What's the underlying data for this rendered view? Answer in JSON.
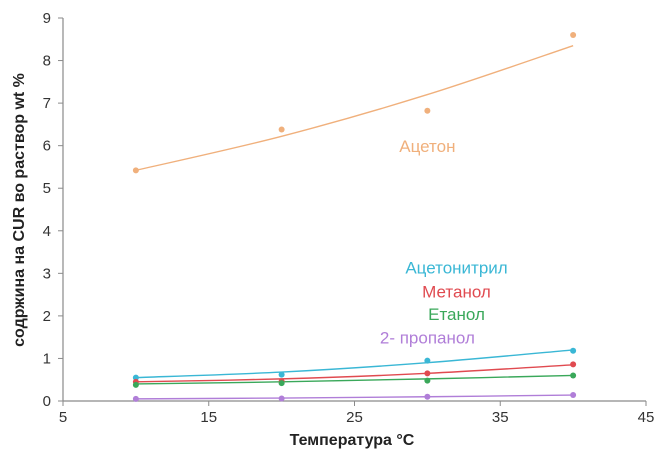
{
  "chart_data": {
    "type": "scatter",
    "title": "",
    "xlabel": "Температура °C",
    "ylabel": "содржина на CUR во раствор wt %",
    "xlim": [
      5,
      45
    ],
    "ylim": [
      0,
      9
    ],
    "xticks": [
      5,
      15,
      25,
      35,
      45
    ],
    "yticks": [
      0,
      1,
      2,
      3,
      4,
      5,
      6,
      7,
      8,
      9
    ],
    "grid": false,
    "legend": "none",
    "series": [
      {
        "name": "Ацетон",
        "color": "#f0b07c",
        "x": [
          10,
          20,
          30,
          40
        ],
        "y": [
          5.42,
          6.38,
          6.82,
          8.6
        ],
        "trend": [
          [
            10,
            5.42
          ],
          [
            20,
            6.22
          ],
          [
            30,
            7.2
          ],
          [
            40,
            8.35
          ]
        ]
      },
      {
        "name": "Ацетонитрил",
        "color": "#3ab7d5",
        "x": [
          10,
          20,
          30,
          40
        ],
        "y": [
          0.55,
          0.62,
          0.95,
          1.18
        ],
        "trend": [
          [
            10,
            0.55
          ],
          [
            20,
            0.68
          ],
          [
            30,
            0.9
          ],
          [
            40,
            1.2
          ]
        ]
      },
      {
        "name": "Метанол",
        "color": "#e04a50",
        "x": [
          10,
          20,
          30,
          40
        ],
        "y": [
          0.45,
          0.46,
          0.65,
          0.86
        ],
        "trend": [
          [
            10,
            0.45
          ],
          [
            20,
            0.52
          ],
          [
            30,
            0.65
          ],
          [
            40,
            0.85
          ]
        ]
      },
      {
        "name": "Етанол",
        "color": "#3aa85a",
        "x": [
          10,
          20,
          30,
          40
        ],
        "y": [
          0.38,
          0.42,
          0.48,
          0.6
        ],
        "trend": [
          [
            10,
            0.4
          ],
          [
            20,
            0.45
          ],
          [
            30,
            0.52
          ],
          [
            40,
            0.6
          ]
        ]
      },
      {
        "name": "2- пропанол",
        "color": "#b07ed8",
        "x": [
          10,
          20,
          30,
          40
        ],
        "y": [
          0.05,
          0.06,
          0.1,
          0.14
        ],
        "trend": [
          [
            10,
            0.05
          ],
          [
            20,
            0.07
          ],
          [
            30,
            0.1
          ],
          [
            40,
            0.14
          ]
        ]
      }
    ]
  }
}
